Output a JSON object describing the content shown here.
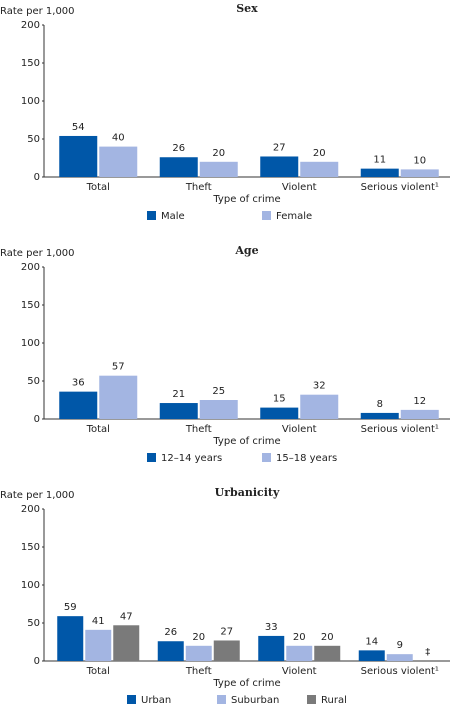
{
  "chart_data": [
    {
      "type": "bar",
      "title": "Sex",
      "y_label": "Rate per 1,000",
      "x_label": "Type of crime",
      "categories": [
        "Total",
        "Theft",
        "Violent",
        "Serious violent¹"
      ],
      "series": [
        {
          "name": "Male",
          "color": "#0057a8",
          "values": [
            54,
            26,
            27,
            11
          ]
        },
        {
          "name": "Female",
          "color": "#a3b5e2",
          "values": [
            40,
            20,
            20,
            10
          ]
        }
      ],
      "ylim": [
        0,
        200
      ],
      "yticks": [
        0,
        50,
        100,
        150,
        200
      ]
    },
    {
      "type": "bar",
      "title": "Age",
      "y_label": "Rate per 1,000",
      "x_label": "Type of crime",
      "categories": [
        "Total",
        "Theft",
        "Violent",
        "Serious violent¹"
      ],
      "series": [
        {
          "name": "12–14 years",
          "color": "#0057a8",
          "values": [
            36,
            21,
            15,
            8
          ]
        },
        {
          "name": "15–18 years",
          "color": "#a3b5e2",
          "values": [
            57,
            25,
            32,
            12
          ]
        }
      ],
      "ylim": [
        0,
        200
      ],
      "yticks": [
        0,
        50,
        100,
        150,
        200
      ]
    },
    {
      "type": "bar",
      "title": "Urbanicity",
      "y_label": "Rate per 1,000",
      "x_label": "Type of crime",
      "categories": [
        "Total",
        "Theft",
        "Violent",
        "Serious violent¹"
      ],
      "series": [
        {
          "name": "Urban",
          "color": "#0057a8",
          "values": [
            59,
            26,
            33,
            14
          ]
        },
        {
          "name": "Suburban",
          "color": "#a3b5e2",
          "values": [
            41,
            20,
            20,
            9
          ]
        },
        {
          "name": "Rural",
          "color": "#7a7a7a",
          "values": [
            47,
            27,
            20,
            null
          ],
          "value_labels": [
            "47",
            "27",
            "20",
            "‡"
          ]
        }
      ],
      "ylim": [
        0,
        200
      ],
      "yticks": [
        0,
        50,
        100,
        150,
        200
      ]
    }
  ]
}
